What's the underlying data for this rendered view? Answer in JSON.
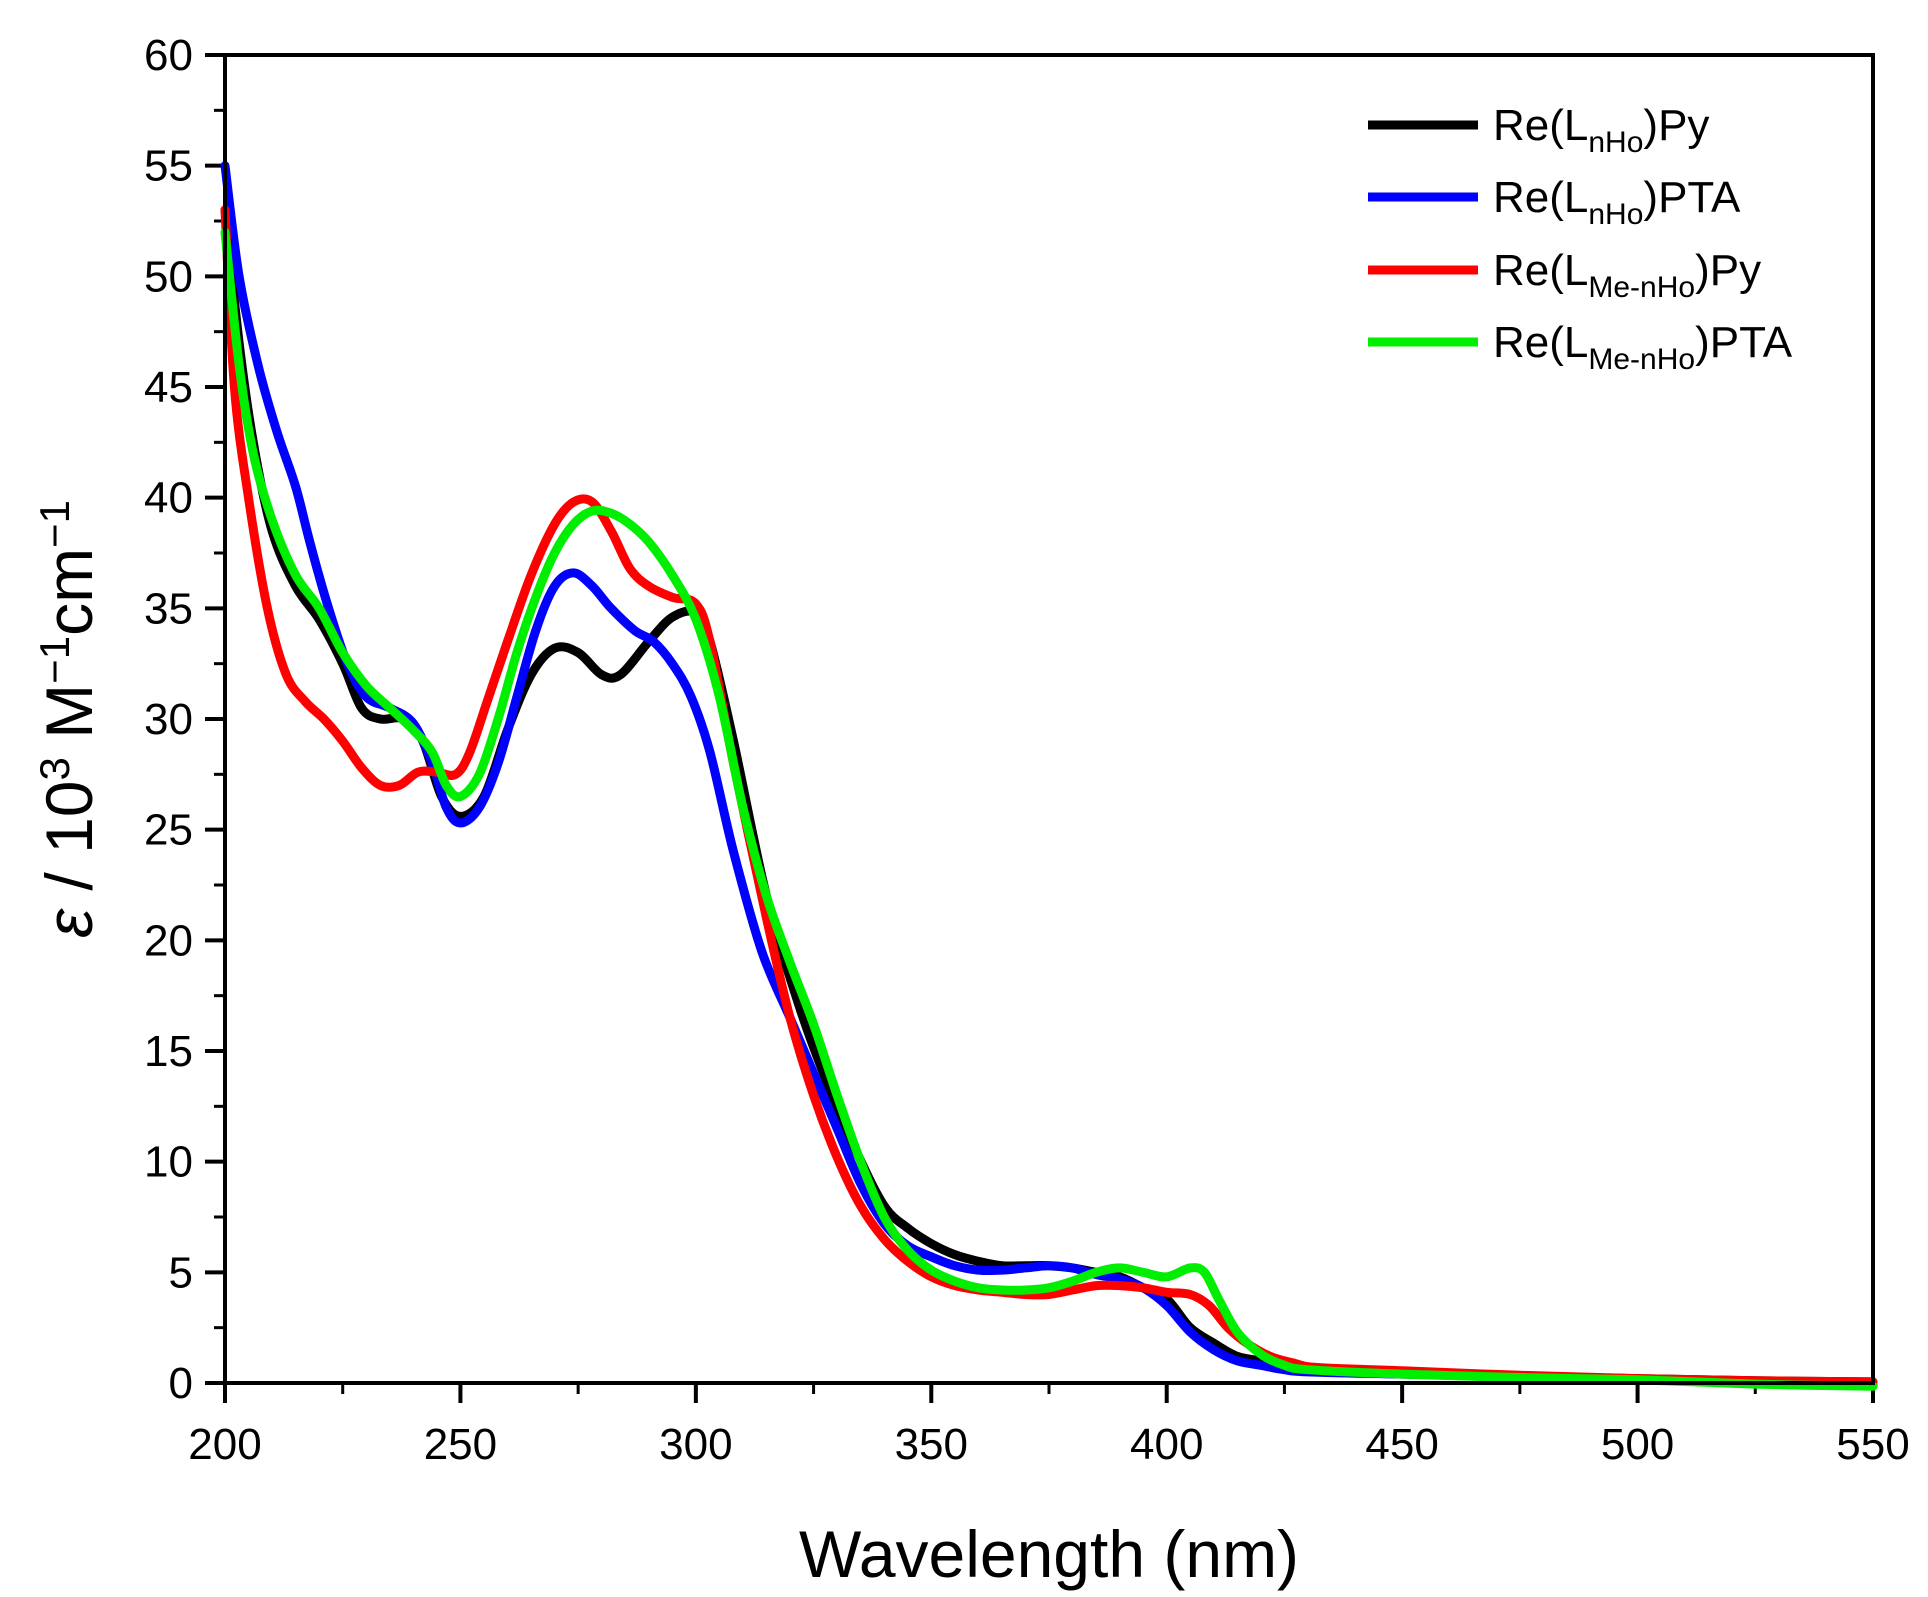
{
  "chart_data": {
    "type": "line",
    "title": "",
    "xlabel": "Wavelength (nm)",
    "ylabel": {
      "epsilon": "ε",
      "slash": " / ",
      "ten": "10",
      "exp3": "3",
      "M": " M",
      "exp_m1a": "−1",
      "cm": "cm",
      "exp_m1b": "−1"
    },
    "xlim": [
      200,
      550
    ],
    "ylim": [
      0,
      60
    ],
    "xticks": [
      200,
      250,
      300,
      350,
      400,
      450,
      500,
      550
    ],
    "yticks": [
      0,
      5,
      10,
      15,
      20,
      25,
      30,
      35,
      40,
      45,
      50,
      55,
      60
    ],
    "legend_position": "top-right",
    "series": [
      {
        "name": "Re(LnHo)Py",
        "label_parts": {
          "pre": "Re(L",
          "sub": "nHo",
          "post": ")Py"
        },
        "color": "#000000",
        "points": [
          [
            200,
            53
          ],
          [
            203,
            47
          ],
          [
            206,
            42.5
          ],
          [
            210,
            38.5
          ],
          [
            215,
            36
          ],
          [
            220,
            34.5
          ],
          [
            225,
            32.5
          ],
          [
            229,
            30.5
          ],
          [
            233,
            30
          ],
          [
            238,
            30
          ],
          [
            242,
            29
          ],
          [
            246,
            26.5
          ],
          [
            250,
            25.6
          ],
          [
            255,
            26.5
          ],
          [
            260,
            29.5
          ],
          [
            265,
            32
          ],
          [
            270,
            33.2
          ],
          [
            275,
            33
          ],
          [
            280,
            32
          ],
          [
            284,
            32
          ],
          [
            290,
            33.5
          ],
          [
            295,
            34.6
          ],
          [
            300,
            34.8
          ],
          [
            303,
            33.5
          ],
          [
            308,
            29
          ],
          [
            315,
            22
          ],
          [
            322,
            17
          ],
          [
            328,
            13.5
          ],
          [
            334,
            10.5
          ],
          [
            340,
            8
          ],
          [
            345,
            7
          ],
          [
            350,
            6.3
          ],
          [
            355,
            5.8
          ],
          [
            360,
            5.5
          ],
          [
            365,
            5.3
          ],
          [
            370,
            5.3
          ],
          [
            375,
            5.3
          ],
          [
            380,
            5.2
          ],
          [
            385,
            5
          ],
          [
            390,
            4.8
          ],
          [
            395,
            4.3
          ],
          [
            400,
            3.8
          ],
          [
            405,
            2.5
          ],
          [
            410,
            1.8
          ],
          [
            415,
            1.2
          ],
          [
            420,
            1
          ],
          [
            425,
            0.8
          ],
          [
            430,
            0.7
          ],
          [
            450,
            0.5
          ],
          [
            475,
            0.3
          ],
          [
            500,
            0.2
          ],
          [
            525,
            0.1
          ],
          [
            550,
            0.05
          ]
        ]
      },
      {
        "name": "Re(LnHo)PTA",
        "label_parts": {
          "pre": "Re(L",
          "sub": "nHo",
          "post": ")PTA"
        },
        "color": "#0000ff",
        "points": [
          [
            200,
            55
          ],
          [
            203,
            50
          ],
          [
            207,
            46
          ],
          [
            211,
            43
          ],
          [
            215,
            40.5
          ],
          [
            218,
            38
          ],
          [
            222,
            35
          ],
          [
            226,
            32.5
          ],
          [
            230,
            31
          ],
          [
            235,
            30.5
          ],
          [
            240,
            29.8
          ],
          [
            244,
            28
          ],
          [
            247,
            26
          ],
          [
            250,
            25.3
          ],
          [
            254,
            26
          ],
          [
            258,
            28
          ],
          [
            262,
            31
          ],
          [
            266,
            34
          ],
          [
            270,
            36
          ],
          [
            274,
            36.6
          ],
          [
            278,
            36
          ],
          [
            282,
            35
          ],
          [
            287,
            34
          ],
          [
            291,
            33.5
          ],
          [
            295,
            32.5
          ],
          [
            299,
            31
          ],
          [
            303,
            28.5
          ],
          [
            308,
            24
          ],
          [
            314,
            19.5
          ],
          [
            320,
            16.5
          ],
          [
            325,
            14
          ],
          [
            330,
            11.5
          ],
          [
            335,
            9
          ],
          [
            340,
            7.2
          ],
          [
            345,
            6.2
          ],
          [
            350,
            5.7
          ],
          [
            355,
            5.3
          ],
          [
            360,
            5.1
          ],
          [
            365,
            5.1
          ],
          [
            370,
            5.2
          ],
          [
            375,
            5.3
          ],
          [
            380,
            5.2
          ],
          [
            385,
            4.9
          ],
          [
            390,
            4.7
          ],
          [
            395,
            4.3
          ],
          [
            400,
            3.5
          ],
          [
            405,
            2.3
          ],
          [
            410,
            1.5
          ],
          [
            415,
            1
          ],
          [
            420,
            0.8
          ],
          [
            425,
            0.6
          ],
          [
            430,
            0.5
          ],
          [
            450,
            0.4
          ],
          [
            475,
            0.3
          ],
          [
            500,
            0.15
          ],
          [
            525,
            0.05
          ],
          [
            550,
            -0.1
          ]
        ]
      },
      {
        "name": "Re(LMe-nHo)Py",
        "label_parts": {
          "pre": "Re(L",
          "sub": "Me-nHo",
          "post": ")Py"
        },
        "color": "#ff0000",
        "points": [
          [
            200,
            53
          ],
          [
            202,
            45
          ],
          [
            205,
            40
          ],
          [
            209,
            35
          ],
          [
            213,
            32
          ],
          [
            217,
            30.8
          ],
          [
            221,
            30
          ],
          [
            225,
            29
          ],
          [
            229,
            27.8
          ],
          [
            233,
            27
          ],
          [
            237,
            27
          ],
          [
            241,
            27.6
          ],
          [
            245,
            27.6
          ],
          [
            249,
            27.5
          ],
          [
            252,
            28.5
          ],
          [
            256,
            31
          ],
          [
            260,
            33.5
          ],
          [
            265,
            36.5
          ],
          [
            270,
            38.8
          ],
          [
            274,
            39.8
          ],
          [
            278,
            39.8
          ],
          [
            282,
            38.5
          ],
          [
            286,
            36.8
          ],
          [
            290,
            36
          ],
          [
            295,
            35.5
          ],
          [
            300,
            35.2
          ],
          [
            303,
            33.5
          ],
          [
            308,
            28
          ],
          [
            315,
            21
          ],
          [
            320,
            16.5
          ],
          [
            325,
            13
          ],
          [
            330,
            10.2
          ],
          [
            335,
            8
          ],
          [
            340,
            6.5
          ],
          [
            345,
            5.5
          ],
          [
            350,
            4.8
          ],
          [
            355,
            4.4
          ],
          [
            360,
            4.2
          ],
          [
            365,
            4.1
          ],
          [
            370,
            4
          ],
          [
            375,
            4
          ],
          [
            380,
            4.2
          ],
          [
            385,
            4.4
          ],
          [
            390,
            4.4
          ],
          [
            395,
            4.3
          ],
          [
            400,
            4.1
          ],
          [
            405,
            4
          ],
          [
            409,
            3.5
          ],
          [
            413,
            2.5
          ],
          [
            417,
            1.8
          ],
          [
            422,
            1.2
          ],
          [
            427,
            0.9
          ],
          [
            432,
            0.7
          ],
          [
            450,
            0.55
          ],
          [
            475,
            0.35
          ],
          [
            500,
            0.2
          ],
          [
            525,
            0.1
          ],
          [
            550,
            0.05
          ]
        ]
      },
      {
        "name": "Re(LMe-nHo)PTA",
        "label_parts": {
          "pre": "Re(L",
          "sub": "Me-nHo",
          "post": ")PTA"
        },
        "color": "#00ee00",
        "points": [
          [
            200,
            52
          ],
          [
            203,
            46
          ],
          [
            206,
            42
          ],
          [
            210,
            39
          ],
          [
            215,
            36.5
          ],
          [
            220,
            35
          ],
          [
            225,
            33
          ],
          [
            230,
            31.5
          ],
          [
            235,
            30.5
          ],
          [
            240,
            29.5
          ],
          [
            244,
            28.5
          ],
          [
            247,
            27
          ],
          [
            250,
            26.5
          ],
          [
            254,
            27.5
          ],
          [
            258,
            30
          ],
          [
            262,
            33
          ],
          [
            266,
            35.5
          ],
          [
            270,
            37.5
          ],
          [
            274,
            38.8
          ],
          [
            278,
            39.4
          ],
          [
            282,
            39.3
          ],
          [
            286,
            38.8
          ],
          [
            290,
            38
          ],
          [
            295,
            36.5
          ],
          [
            300,
            34.5
          ],
          [
            305,
            31
          ],
          [
            310,
            26
          ],
          [
            315,
            22
          ],
          [
            320,
            19
          ],
          [
            325,
            16.2
          ],
          [
            330,
            13
          ],
          [
            335,
            10
          ],
          [
            340,
            7.5
          ],
          [
            345,
            6
          ],
          [
            350,
            5.1
          ],
          [
            355,
            4.6
          ],
          [
            360,
            4.3
          ],
          [
            365,
            4.2
          ],
          [
            370,
            4.2
          ],
          [
            375,
            4.3
          ],
          [
            380,
            4.6
          ],
          [
            385,
            5
          ],
          [
            390,
            5.2
          ],
          [
            395,
            5
          ],
          [
            400,
            4.8
          ],
          [
            405,
            5.2
          ],
          [
            408,
            5
          ],
          [
            411,
            3.8
          ],
          [
            415,
            2.3
          ],
          [
            420,
            1.3
          ],
          [
            425,
            0.8
          ],
          [
            430,
            0.6
          ],
          [
            450,
            0.4
          ],
          [
            475,
            0.25
          ],
          [
            500,
            0.15
          ],
          [
            525,
            -0.05
          ],
          [
            550,
            -0.15
          ]
        ]
      }
    ]
  }
}
